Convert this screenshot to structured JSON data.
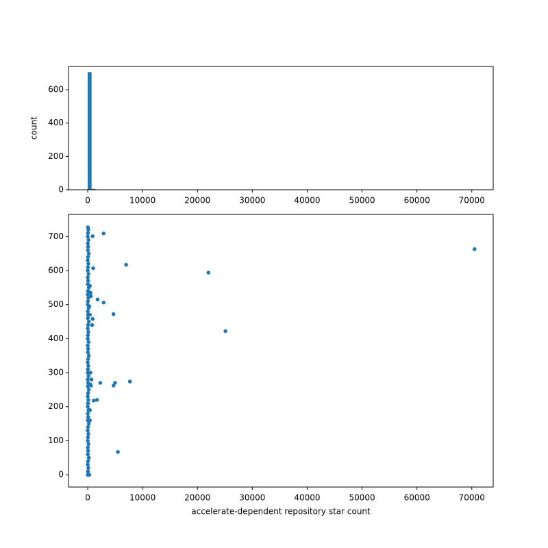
{
  "chart_data": [
    {
      "type": "histogram",
      "ylabel": "count",
      "color": "#1f77b4",
      "bins": [
        0,
        705,
        1410,
        2115,
        2820,
        3525,
        4230,
        4935,
        5640,
        6345,
        7050,
        7755,
        8460,
        9165,
        9870,
        10575,
        11280,
        11985,
        12690,
        13395,
        14100,
        14805,
        15510,
        16215,
        16920,
        17625,
        18330,
        19035,
        19740,
        20445,
        21150,
        21855,
        22560,
        23265,
        23970,
        24675,
        25380,
        26085,
        26790,
        27495,
        28200,
        28905,
        29610,
        30315,
        31020,
        31725,
        32430,
        33135,
        33840,
        34545,
        35250,
        35955,
        36660,
        37365,
        38070,
        38775,
        39480,
        40185,
        40890,
        41595,
        42300,
        43005,
        43710,
        44415,
        45120,
        45825,
        46530,
        47235,
        47940,
        48645,
        49350,
        50055,
        50760,
        51465,
        52170,
        52875,
        53580,
        54285,
        54990,
        55695,
        56400,
        57105,
        57810,
        58515,
        59220,
        59925,
        60630,
        61335,
        62040,
        62745,
        63450,
        64155,
        64860,
        65565,
        66270,
        66975,
        67680,
        68385,
        69090,
        69795,
        70500
      ],
      "values": [
        706,
        5,
        2,
        1,
        2,
        0,
        2,
        2,
        0,
        1,
        1,
        0,
        0,
        0,
        0,
        0,
        0,
        0,
        0,
        0,
        0,
        0,
        0,
        0,
        0,
        0,
        0,
        0,
        0,
        0,
        0,
        1,
        0,
        0,
        0,
        1,
        0,
        0,
        0,
        0,
        0,
        0,
        0,
        0,
        0,
        0,
        0,
        0,
        0,
        0,
        0,
        0,
        0,
        0,
        0,
        0,
        0,
        0,
        0,
        0,
        0,
        0,
        0,
        0,
        0,
        0,
        0,
        0,
        0,
        0,
        0,
        0,
        0,
        0,
        0,
        0,
        0,
        0,
        0,
        0,
        0,
        0,
        0,
        0,
        0,
        0,
        0,
        0,
        0,
        0,
        0,
        0,
        0,
        0,
        0,
        0,
        0,
        0,
        0,
        1
      ],
      "xlim": [
        -3500,
        73900
      ],
      "xticks": [
        0,
        10000,
        20000,
        30000,
        40000,
        50000,
        60000,
        70000
      ],
      "ylim": [
        0,
        740
      ],
      "yticks": [
        0,
        200,
        400,
        600
      ]
    },
    {
      "type": "scatter",
      "xlabel": "accelerate-dependent repository star count",
      "color": "#1f77b4",
      "x": [
        10,
        40,
        120,
        5,
        60,
        200,
        25,
        80,
        15,
        150,
        10,
        40,
        120,
        5,
        60,
        200,
        25,
        80,
        15,
        150,
        10,
        40,
        120,
        5,
        60,
        200,
        25,
        80,
        15,
        150,
        10,
        40,
        120,
        5,
        60,
        200,
        25,
        80,
        15,
        150,
        10,
        40,
        120,
        5,
        60,
        200,
        25,
        80,
        15,
        150,
        10,
        40,
        120,
        5,
        60,
        200,
        25,
        80,
        15,
        150,
        10,
        40,
        120,
        5,
        60,
        200,
        25,
        80,
        15,
        150,
        10,
        40,
        120,
        30,
        300,
        400,
        400,
        500,
        600,
        700,
        500,
        400,
        500,
        600,
        300,
        400,
        2900,
        900,
        1000,
        7000,
        22000,
        1800,
        2900,
        4700,
        900,
        800,
        25100,
        7700,
        5000,
        2300,
        4700,
        1700,
        1100,
        5500,
        70500
      ],
      "values": [
        0,
        10,
        20,
        30,
        40,
        50,
        60,
        70,
        80,
        90,
        100,
        110,
        120,
        130,
        140,
        150,
        160,
        170,
        180,
        190,
        200,
        210,
        220,
        230,
        240,
        250,
        260,
        270,
        280,
        290,
        300,
        310,
        320,
        330,
        340,
        350,
        360,
        370,
        380,
        390,
        400,
        410,
        420,
        430,
        440,
        450,
        460,
        470,
        480,
        490,
        500,
        510,
        520,
        530,
        540,
        550,
        560,
        570,
        580,
        590,
        600,
        610,
        620,
        630,
        640,
        650,
        660,
        670,
        680,
        690,
        700,
        710,
        720,
        727,
        0,
        160,
        190,
        265,
        262,
        280,
        300,
        555,
        535,
        525,
        495,
        470,
        709,
        701,
        607,
        617,
        594,
        515,
        506,
        472,
        458,
        440,
        422,
        274,
        270,
        270,
        262,
        220,
        218,
        67,
        663
      ],
      "xlim": [
        -3500,
        73900
      ],
      "xticks": [
        0,
        10000,
        20000,
        30000,
        40000,
        50000,
        60000,
        70000
      ],
      "ylim": [
        -36,
        765
      ],
      "yticks": [
        0,
        100,
        200,
        300,
        400,
        500,
        600,
        700
      ]
    }
  ]
}
